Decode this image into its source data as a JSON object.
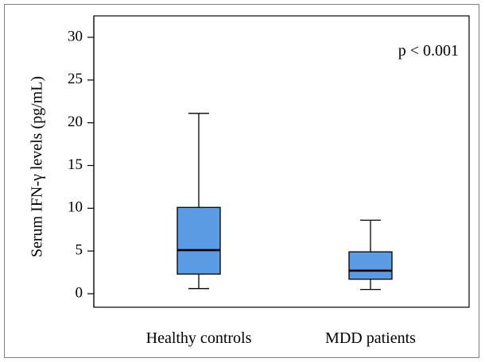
{
  "chart_data": {
    "type": "box",
    "categories": [
      "Healthy controls",
      "MDD patients"
    ],
    "boxes": [
      {
        "category": "Healthy controls",
        "min": 0.6,
        "q1": 2.3,
        "median": 5.1,
        "q3": 10.1,
        "max": 21.1
      },
      {
        "category": "MDD patients",
        "min": 0.5,
        "q1": 1.7,
        "median": 2.7,
        "q3": 4.9,
        "max": 8.6
      }
    ],
    "ylabel": "Serum IFN-γ levels (pg/mL)",
    "xlabel": "",
    "ylim": [
      0,
      30
    ],
    "yticks": [
      0,
      5,
      10,
      15,
      20,
      25,
      30
    ],
    "annotation": "p < 0.001",
    "box_color": "#5b9be6",
    "line_color": "#000000",
    "grid": false
  }
}
